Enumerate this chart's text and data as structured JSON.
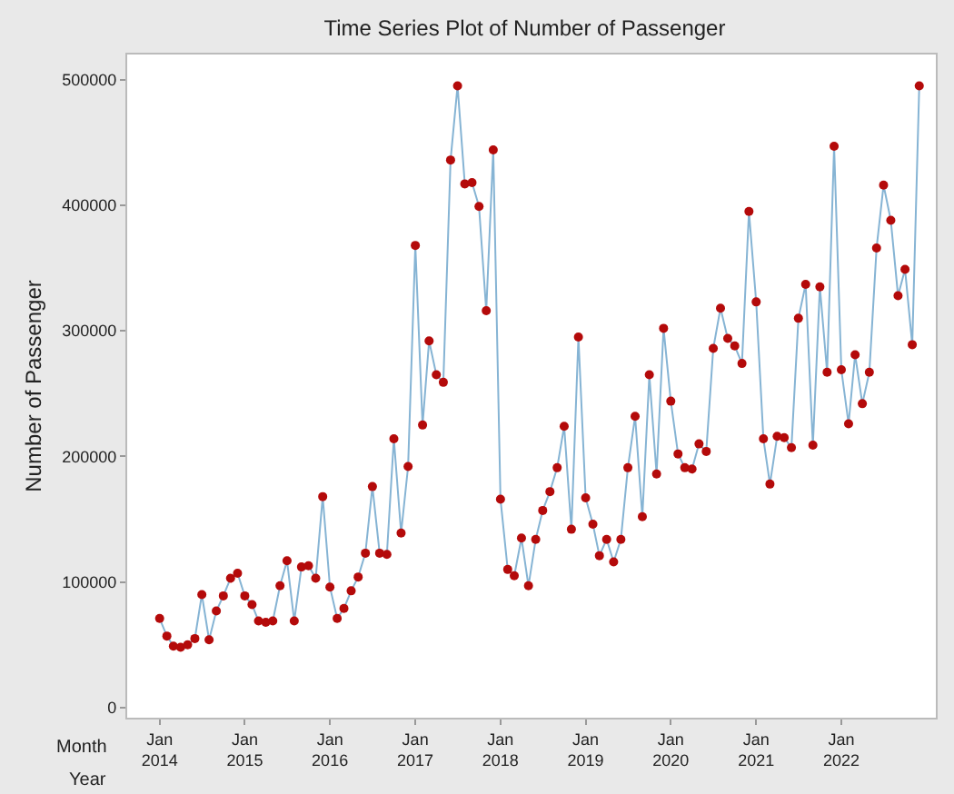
{
  "chart_data": {
    "type": "line",
    "title": "Time Series Plot of Number of Passenger",
    "ylabel": "Number of Passenger",
    "annotations": [
      "Month",
      "Year"
    ],
    "x": [
      "2014-01",
      "2014-02",
      "2014-03",
      "2014-04",
      "2014-05",
      "2014-06",
      "2014-07",
      "2014-08",
      "2014-09",
      "2014-10",
      "2014-11",
      "2014-12",
      "2015-01",
      "2015-02",
      "2015-03",
      "2015-04",
      "2015-05",
      "2015-06",
      "2015-07",
      "2015-08",
      "2015-09",
      "2015-10",
      "2015-11",
      "2015-12",
      "2016-01",
      "2016-02",
      "2016-03",
      "2016-04",
      "2016-05",
      "2016-06",
      "2016-07",
      "2016-08",
      "2016-09",
      "2016-10",
      "2016-11",
      "2016-12",
      "2017-01",
      "2017-02",
      "2017-03",
      "2017-04",
      "2017-05",
      "2017-06",
      "2017-07",
      "2017-08",
      "2017-09",
      "2017-10",
      "2017-11",
      "2017-12",
      "2018-01",
      "2018-02",
      "2018-03",
      "2018-04",
      "2018-05",
      "2018-06",
      "2018-07",
      "2018-08",
      "2018-09",
      "2018-10",
      "2018-11",
      "2018-12",
      "2019-01",
      "2019-02",
      "2019-03",
      "2019-04",
      "2019-05",
      "2019-06",
      "2019-07",
      "2019-08",
      "2019-09",
      "2019-10",
      "2019-11",
      "2019-12",
      "2020-01",
      "2020-02",
      "2020-03",
      "2020-04",
      "2020-05",
      "2020-06",
      "2020-07",
      "2020-08",
      "2020-09",
      "2020-10",
      "2020-11",
      "2020-12",
      "2021-01",
      "2021-02",
      "2021-03",
      "2021-04",
      "2021-05",
      "2021-06",
      "2021-07",
      "2021-08",
      "2021-09",
      "2021-10",
      "2021-11",
      "2021-12",
      "2022-01",
      "2022-02",
      "2022-03",
      "2022-04",
      "2022-05",
      "2022-06",
      "2022-07",
      "2022-08",
      "2022-09",
      "2022-10",
      "2022-11",
      "2022-12"
    ],
    "series": [
      {
        "color": "#b40a0a",
        "values": [
          71000,
          57000,
          49000,
          48000,
          50000,
          55000,
          90000,
          54000,
          77000,
          89000,
          103000,
          107000,
          89000,
          82000,
          69000,
          68000,
          69000,
          97000,
          117000,
          69000,
          112000,
          113000,
          103000,
          168000,
          96000,
          71000,
          79000,
          93000,
          104000,
          123000,
          176000,
          123000,
          122000,
          214000,
          139000,
          192000,
          368000,
          225000,
          292000,
          265000,
          259000,
          436000,
          495000,
          417000,
          418000,
          399000,
          316000,
          444000,
          166000,
          110000,
          105000,
          135000,
          97000,
          134000,
          157000,
          172000,
          191000,
          224000,
          142000,
          295000,
          167000,
          146000,
          121000,
          134000,
          116000,
          134000,
          191000,
          232000,
          152000,
          265000,
          186000,
          302000,
          244000,
          202000,
          191000,
          190000,
          210000,
          204000,
          286000,
          318000,
          294000,
          288000,
          274000,
          395000,
          323000,
          214000,
          178000,
          216000,
          215000,
          207000,
          310000,
          337000,
          209000,
          335000,
          267000,
          447000,
          269000,
          226000,
          281000,
          242000,
          267000,
          366000,
          416000,
          388000,
          328000,
          349000,
          289000,
          495000
        ]
      }
    ],
    "marker": "circle",
    "line_style": "solid",
    "grid": false,
    "xlim": [
      "2013-08-15",
      "2023-02-10"
    ],
    "xticks": [
      {
        "value": "2014-01",
        "label": "Jan\n2014"
      },
      {
        "value": "2015-01",
        "label": "Jan\n2015"
      },
      {
        "value": "2016-01",
        "label": "Jan\n2016"
      },
      {
        "value": "2017-01",
        "label": "Jan\n2017"
      },
      {
        "value": "2018-01",
        "label": "Jan\n2018"
      },
      {
        "value": "2019-01",
        "label": "Jan\n2019"
      },
      {
        "value": "2020-01",
        "label": "Jan\n2020"
      },
      {
        "value": "2021-01",
        "label": "Jan\n2021"
      },
      {
        "value": "2022-01",
        "label": "Jan\n2022"
      }
    ],
    "ylim": [
      -8000,
      520000
    ],
    "yticks": [
      0,
      100000,
      200000,
      300000,
      400000,
      500000
    ]
  }
}
